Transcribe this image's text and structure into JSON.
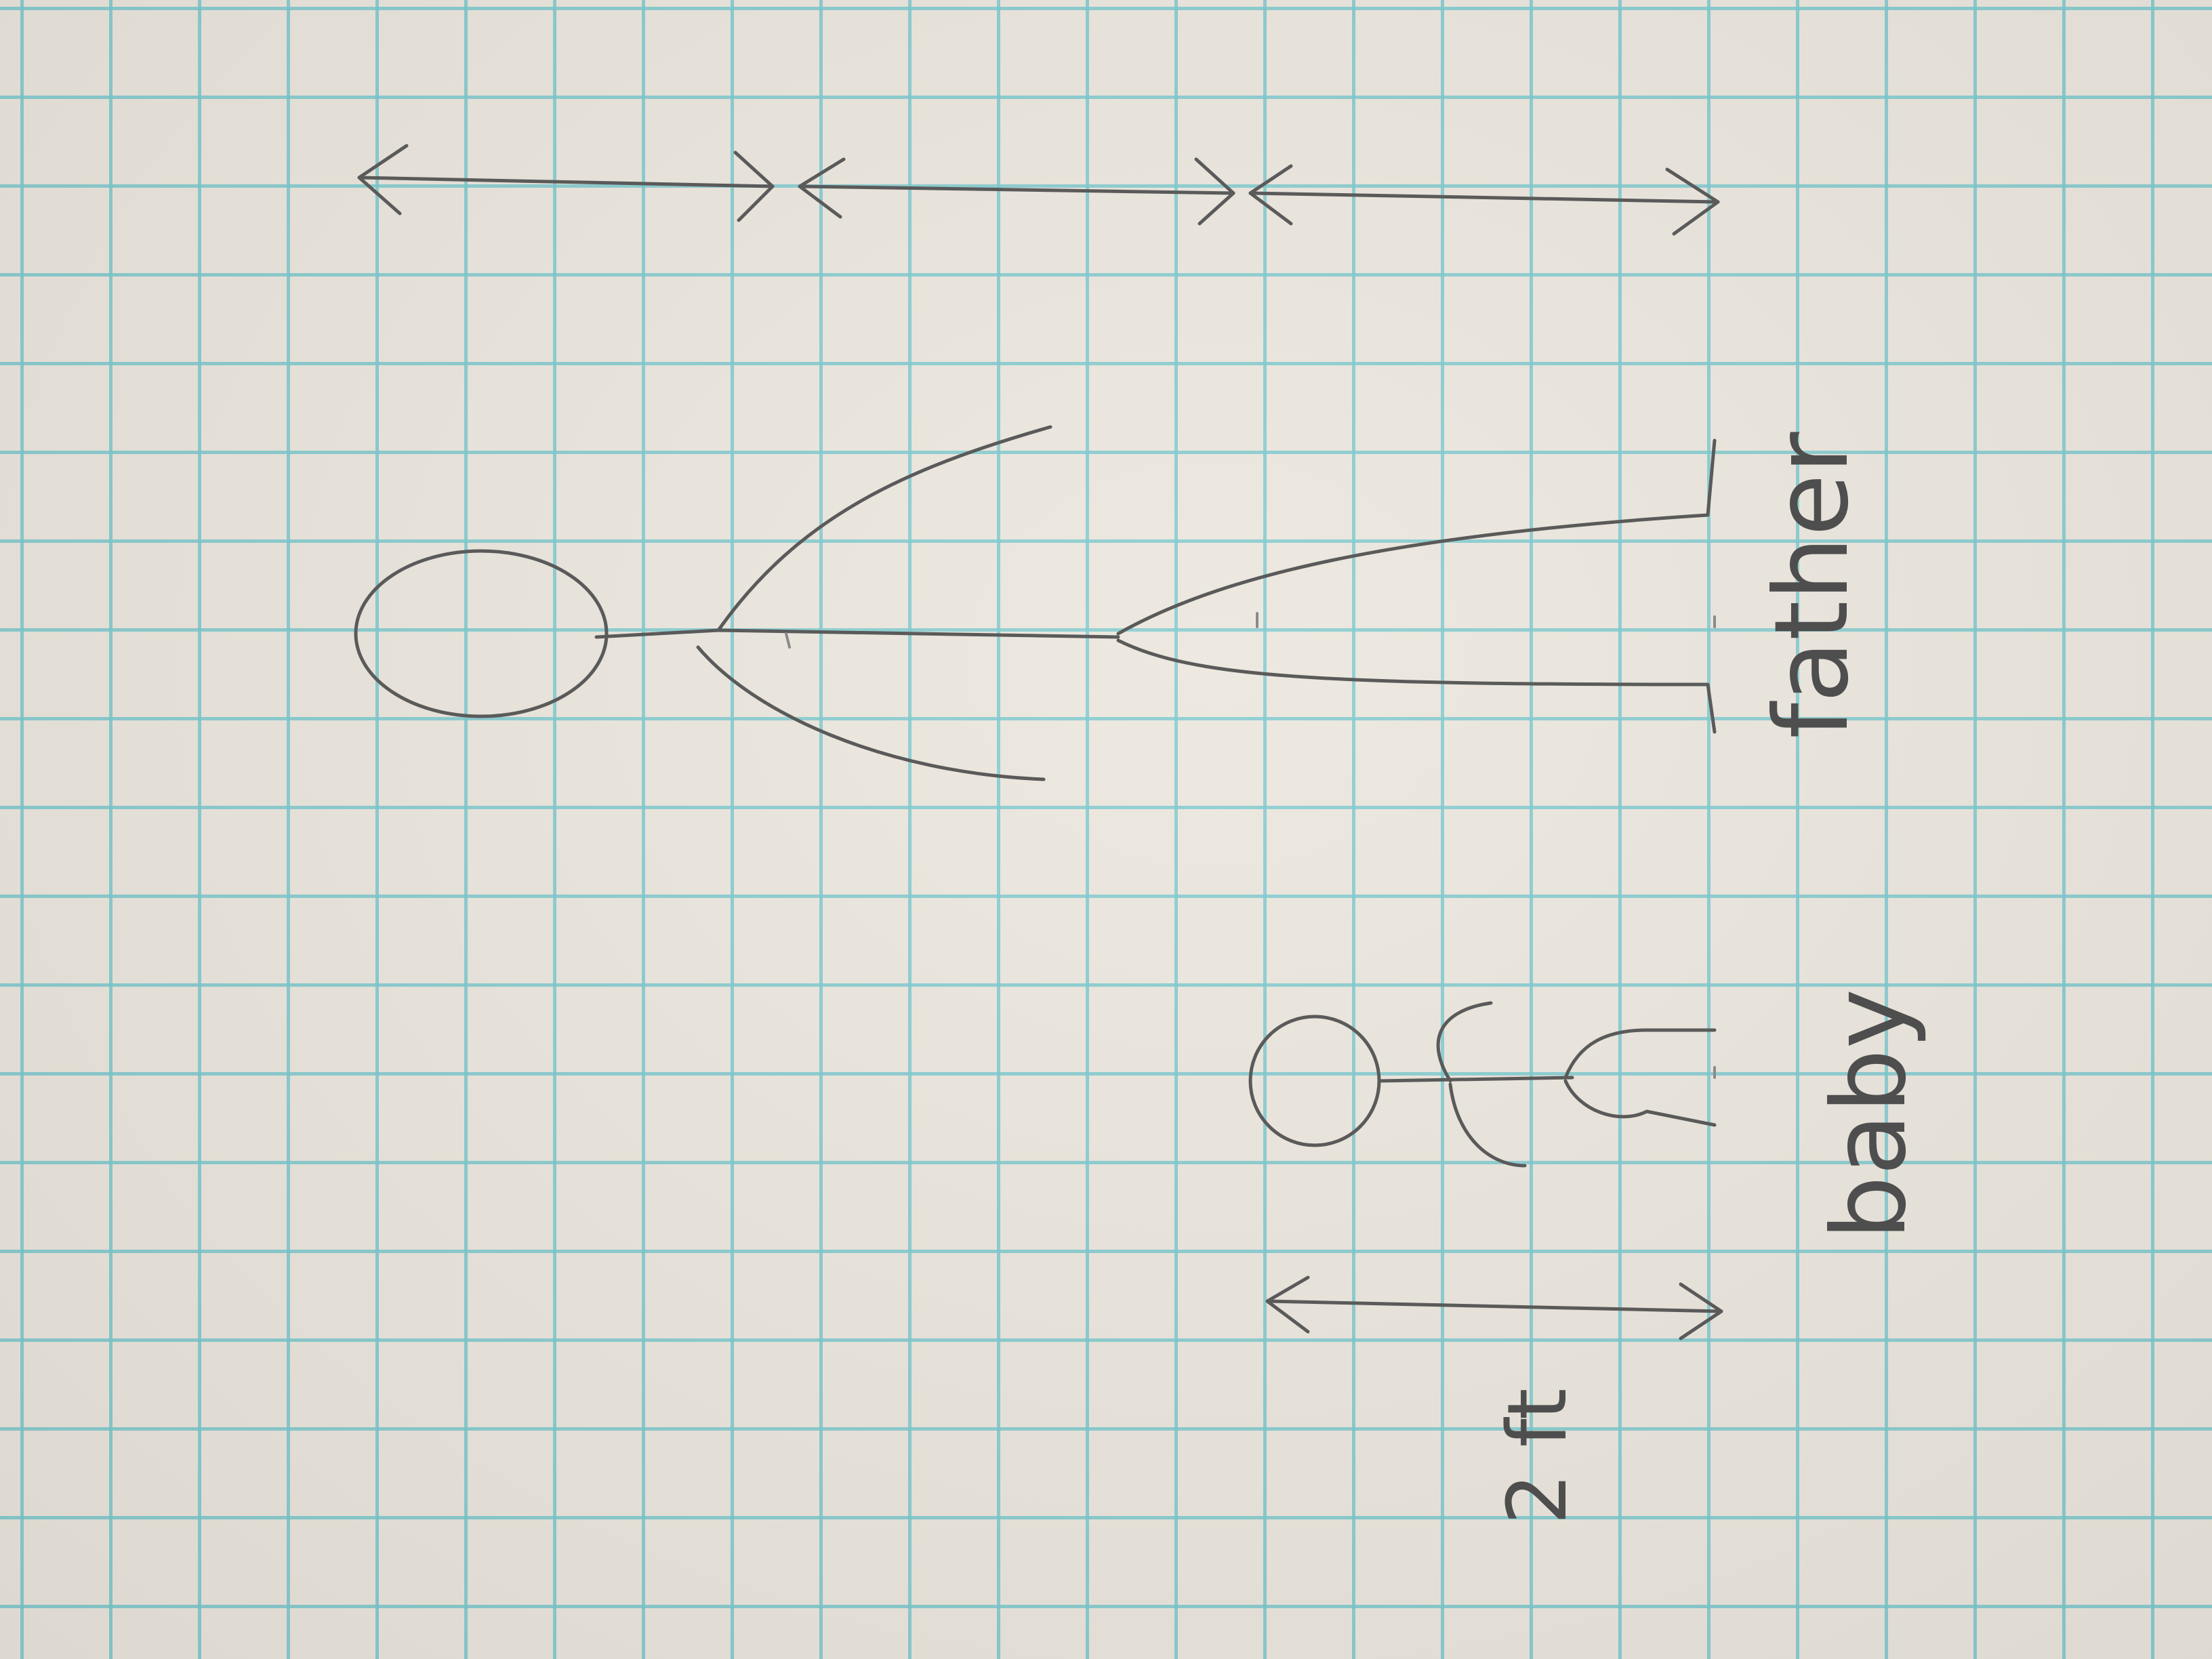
{
  "labels": {
    "father": "father",
    "baby": "baby",
    "baby_height": "2 ft"
  },
  "colors": {
    "paper": "#ebe6dd",
    "grid": "#78c8cd",
    "pencil": "#5a5a5a"
  }
}
